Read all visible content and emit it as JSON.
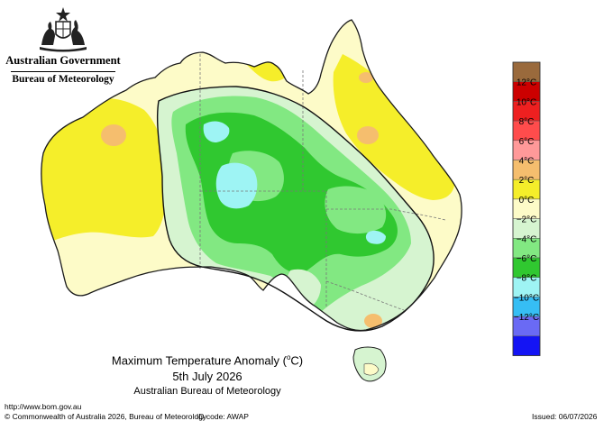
{
  "header": {
    "government": "Australian Government",
    "bureau": "Bureau of Meteorology"
  },
  "caption": {
    "title_prefix": "Maximum Temperature Anomaly (",
    "title_unit_sup": "o",
    "title_suffix": "C)",
    "date": "5th July 2026",
    "organisation": "Australian Bureau of Meteorology"
  },
  "legend": {
    "units": "°C",
    "bins": [
      {
        "label": "",
        "color": "#9a6a3c"
      },
      {
        "label": "12",
        "color": "#cc0000"
      },
      {
        "label": "10",
        "color": "#ee2020"
      },
      {
        "label": "8",
        "color": "#ff4c4c"
      },
      {
        "label": "6",
        "color": "#ff9999"
      },
      {
        "label": "4",
        "color": "#f5be6e"
      },
      {
        "label": "2",
        "color": "#f5ee2a"
      },
      {
        "label": "0",
        "color": "#fdfbc8"
      },
      {
        "label": "−2",
        "color": "#d6f4d0"
      },
      {
        "label": "−4",
        "color": "#82e882"
      },
      {
        "label": "−6",
        "color": "#30c830"
      },
      {
        "label": "−8",
        "color": "#9ef4f4"
      },
      {
        "label": "−10",
        "color": "#36bef4"
      },
      {
        "label": "−12",
        "color": "#6a6af4"
      },
      {
        "label": "",
        "color": "#1414f4"
      }
    ]
  },
  "footer": {
    "url": "http://www.bom.gov.au",
    "copyright": "© Commonwealth of Australia 2026, Bureau of Meteorology",
    "id_code": "ID code: AWAP",
    "issued": "Issued: 06/07/2026"
  }
}
